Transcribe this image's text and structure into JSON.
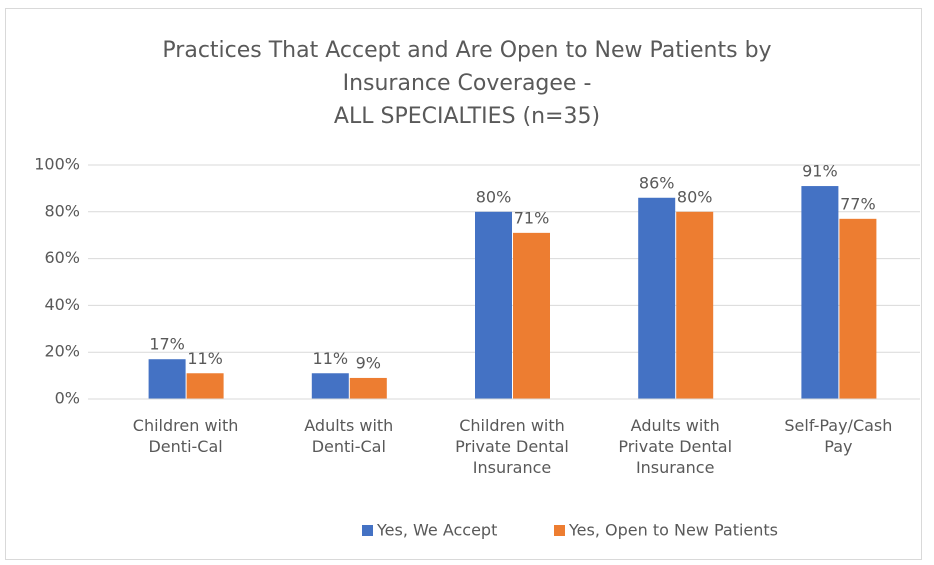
{
  "chart_data": {
    "type": "bar",
    "title": "Practices That Accept and Are Open to New Patients by\nInsurance Coveragee -\nALL SPECIALTIES (n=35)",
    "categories": [
      "Children with\nDenti-Cal",
      "Adults with\nDenti-Cal",
      "Children with\nPrivate Dental\nInsurance",
      "Adults with\nPrivate Dental\nInsurance",
      "Self-Pay/Cash\nPay"
    ],
    "series": [
      {
        "name": "Yes, We Accept",
        "color": "#4472c4",
        "values": [
          17,
          11,
          80,
          86,
          91
        ],
        "value_labels": [
          "17%",
          "11%",
          "80%",
          "86%",
          "91%"
        ]
      },
      {
        "name": "Yes, Open to New Patients",
        "color": "#ed7d31",
        "values": [
          11,
          9,
          71,
          80,
          77
        ],
        "value_labels": [
          "11%",
          "9%",
          "71%",
          "80%",
          "77%"
        ]
      }
    ],
    "ylim": [
      0,
      100
    ],
    "yticks": [
      {
        "value": 0,
        "label": "0%"
      },
      {
        "value": 20,
        "label": "20%"
      },
      {
        "value": 40,
        "label": "40%"
      },
      {
        "value": 60,
        "label": "60%"
      },
      {
        "value": 80,
        "label": "80%"
      },
      {
        "value": 100,
        "label": "100%"
      }
    ],
    "grid": true,
    "legend": "bottom"
  }
}
